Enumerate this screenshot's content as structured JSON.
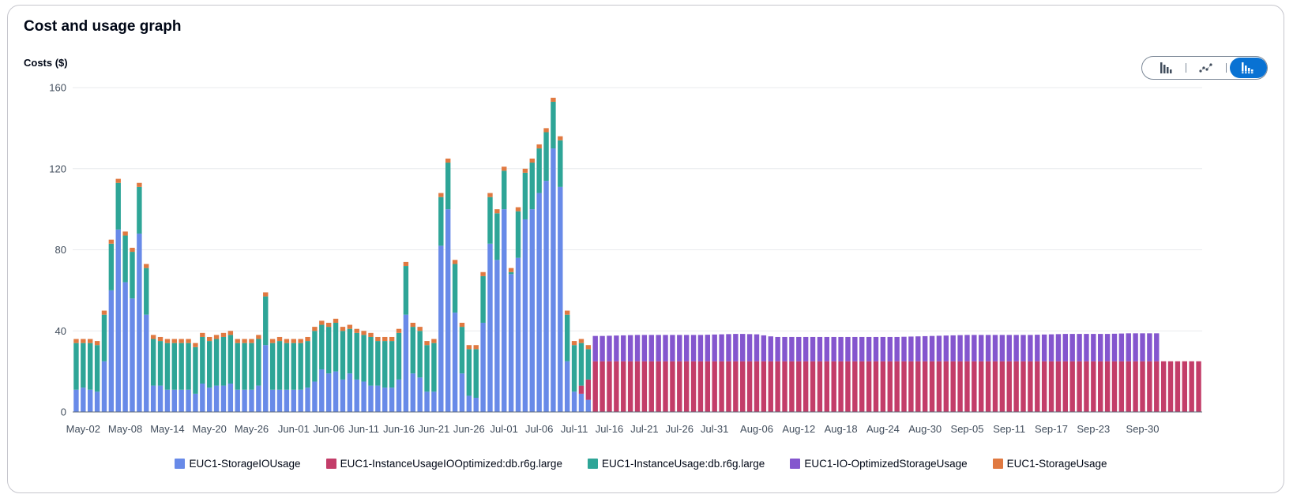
{
  "panel": {
    "title": "Cost and usage graph",
    "toggle": [
      {
        "name": "bar-chart-icon",
        "active": false
      },
      {
        "name": "line-chart-icon",
        "active": false
      },
      {
        "name": "stacked-bar-chart-icon",
        "active": true
      }
    ]
  },
  "colors": {
    "grid": "#e9ebed",
    "axis": "#5f6b7a",
    "tick_text": "#414d5c"
  },
  "chart_data": {
    "type": "bar",
    "stacked": true,
    "ylabel": "Costs ($)",
    "ylim": [
      0,
      160
    ],
    "yticks": [
      0,
      40,
      80,
      120,
      160
    ],
    "grid": true,
    "legend_position": "bottom",
    "x_start": "2023-05-01",
    "x_end": "2023-09-30",
    "xtick_labels": [
      "May-02",
      "May-08",
      "May-14",
      "May-20",
      "May-26",
      "Jun-01",
      "Jun-06",
      "Jun-11",
      "Jun-16",
      "Jun-21",
      "Jun-26",
      "Jul-01",
      "Jul-06",
      "Jul-11",
      "Jul-16",
      "Jul-21",
      "Jul-26",
      "Jul-31",
      "Aug-06",
      "Aug-12",
      "Aug-18",
      "Aug-24",
      "Aug-30",
      "Sep-05",
      "Sep-11",
      "Sep-17",
      "Sep-23",
      "Sep-30"
    ],
    "series": [
      {
        "name": "EUC1-StorageIOUsage",
        "color": "#688ae8",
        "values": [
          11,
          12,
          11,
          10,
          25,
          60,
          90,
          64,
          56,
          88,
          48,
          13,
          13,
          11,
          11,
          11,
          11,
          9,
          14,
          12,
          13,
          13,
          14,
          11,
          11,
          11,
          13,
          33,
          11,
          11,
          11,
          11,
          11,
          12,
          15,
          21,
          19,
          20,
          16,
          19,
          16,
          15,
          13,
          13,
          12,
          12,
          16,
          48,
          19,
          17,
          10,
          10,
          82,
          100,
          49,
          19,
          8,
          7,
          44,
          83,
          75,
          100,
          68,
          76,
          95,
          100,
          108,
          114,
          130,
          111,
          25,
          10,
          9,
          6
        ]
      },
      {
        "name": "EUC1-InstanceUsageIOOptimized:db.r6g.large",
        "color": "#c33d69",
        "values": [
          0,
          0,
          0,
          0,
          0,
          0,
          0,
          0,
          0,
          0,
          0,
          0,
          0,
          0,
          0,
          0,
          0,
          0,
          0,
          0,
          0,
          0,
          0,
          0,
          0,
          0,
          0,
          0,
          0,
          0,
          0,
          0,
          0,
          0,
          0,
          0,
          0,
          0,
          0,
          0,
          0,
          0,
          0,
          0,
          0,
          0,
          0,
          0,
          0,
          0,
          0,
          0,
          0,
          0,
          0,
          0,
          0,
          0,
          0,
          0,
          0,
          0,
          0,
          0,
          0,
          0,
          0,
          0,
          0,
          0,
          0,
          0,
          4,
          10,
          25,
          25,
          25,
          25,
          25,
          25,
          25,
          25,
          25,
          25,
          25,
          25,
          25,
          25,
          25,
          25,
          25,
          25,
          25,
          25,
          25,
          25,
          25,
          25,
          25,
          25,
          25,
          25,
          25,
          25,
          25,
          25,
          25,
          25,
          25,
          25,
          25,
          25,
          25,
          25,
          25,
          25,
          25,
          25,
          25,
          25,
          25,
          25,
          25,
          25,
          25,
          25,
          25,
          25,
          25,
          25,
          25,
          25,
          25,
          25,
          25,
          25,
          25,
          25,
          25,
          25,
          25,
          25,
          25,
          25,
          25,
          25,
          25,
          25,
          25,
          25,
          25,
          25,
          25,
          25,
          25,
          25,
          25,
          25,
          25,
          25,
          25
        ]
      },
      {
        "name": "EUC1-InstanceUsage:db.r6g.large",
        "color": "#2ea597",
        "values": [
          23,
          22,
          23,
          23,
          23,
          23,
          23,
          23,
          23,
          23,
          23,
          23,
          22,
          23,
          23,
          23,
          23,
          23,
          23,
          23,
          23,
          24,
          24,
          23,
          23,
          23,
          23,
          24,
          23,
          24,
          23,
          23,
          23,
          23,
          25,
          22,
          23,
          24,
          24,
          22,
          23,
          23,
          24,
          22,
          23,
          23,
          23,
          24,
          23,
          23,
          23,
          24,
          24,
          23,
          24,
          23,
          23,
          24,
          23,
          23,
          23,
          19,
          1,
          23,
          23,
          23,
          22,
          24,
          23,
          23,
          23,
          23,
          21,
          15,
          0,
          0,
          0,
          0,
          0,
          0,
          0,
          0,
          0,
          0,
          0,
          0,
          0,
          0,
          0,
          0,
          0,
          0,
          0,
          0,
          0,
          0,
          0,
          0,
          0,
          0,
          0,
          0,
          0,
          0,
          0,
          0,
          0,
          0,
          0,
          0,
          0,
          0,
          0,
          0,
          0,
          0,
          0,
          0,
          0,
          0,
          0,
          0,
          0,
          0,
          0,
          0,
          0,
          0,
          0,
          0,
          0,
          0,
          0,
          0,
          0,
          0,
          0,
          0,
          0,
          0,
          0,
          0,
          0,
          0,
          0,
          0,
          0,
          0,
          0,
          0,
          0,
          0,
          0,
          0
        ]
      },
      {
        "name": "EUC1-IO-OptimizedStorageUsage",
        "color": "#8456ce",
        "values": [
          0,
          0,
          0,
          0,
          0,
          0,
          0,
          0,
          0,
          0,
          0,
          0,
          0,
          0,
          0,
          0,
          0,
          0,
          0,
          0,
          0,
          0,
          0,
          0,
          0,
          0,
          0,
          0,
          0,
          0,
          0,
          0,
          0,
          0,
          0,
          0,
          0,
          0,
          0,
          0,
          0,
          0,
          0,
          0,
          0,
          0,
          0,
          0,
          0,
          0,
          0,
          0,
          0,
          0,
          0,
          0,
          0,
          0,
          0,
          0,
          0,
          0,
          0,
          0,
          0,
          0,
          0,
          0,
          0,
          0,
          0,
          0,
          0,
          0,
          12.5,
          12.5,
          12.6,
          12.7,
          12.8,
          12.9,
          13,
          13,
          13,
          13,
          13,
          13,
          13,
          13,
          13,
          13,
          13.1,
          13.2,
          13.3,
          13.4,
          13.5,
          13.5,
          13.4,
          13.3,
          12.8,
          12.3,
          12,
          12,
          12,
          12,
          12,
          12,
          12,
          12,
          12,
          12,
          12,
          12,
          12,
          12,
          12,
          12,
          12,
          12,
          12.1,
          12.2,
          12.3,
          12.4,
          12.5,
          12.6,
          12.7,
          12.8,
          12.9,
          13,
          13,
          13,
          13,
          13,
          13,
          13,
          13,
          13,
          13,
          13.1,
          13.2,
          13.3,
          13.4,
          13.5,
          13.5,
          13.5,
          13.5,
          13.5,
          13.5,
          13.5,
          13.6,
          13.7,
          13.8,
          13.8,
          13.8,
          13.8,
          13.8
        ]
      },
      {
        "name": "EUC1-StorageUsage",
        "color": "#e07941",
        "values": [
          2,
          2,
          2,
          2,
          2,
          2,
          2,
          2,
          2,
          2,
          2,
          2,
          2,
          2,
          2,
          2,
          2,
          2,
          2,
          2,
          2,
          2,
          2,
          2,
          2,
          2,
          2,
          2,
          2,
          2,
          2,
          2,
          2,
          2,
          2,
          2,
          2,
          2,
          2,
          2,
          2,
          2,
          2,
          2,
          2,
          2,
          2,
          2,
          2,
          2,
          2,
          2,
          2,
          2,
          2,
          2,
          2,
          2,
          2,
          2,
          2,
          2,
          2,
          2,
          2,
          2,
          2,
          2,
          2,
          2,
          2,
          2,
          2,
          2,
          0,
          0,
          0,
          0,
          0,
          0,
          0,
          0,
          0,
          0,
          0,
          0,
          0,
          0,
          0,
          0,
          0,
          0,
          0,
          0,
          0,
          0,
          0,
          0,
          0,
          0,
          0,
          0,
          0,
          0,
          0,
          0,
          0,
          0,
          0,
          0,
          0,
          0,
          0,
          0,
          0,
          0,
          0,
          0,
          0,
          0,
          0,
          0,
          0,
          0,
          0,
          0,
          0,
          0,
          0,
          0,
          0,
          0,
          0,
          0,
          0,
          0,
          0,
          0,
          0,
          0,
          0,
          0,
          0,
          0,
          0,
          0,
          0,
          0,
          0,
          0,
          0,
          0,
          0,
          0
        ]
      }
    ]
  }
}
